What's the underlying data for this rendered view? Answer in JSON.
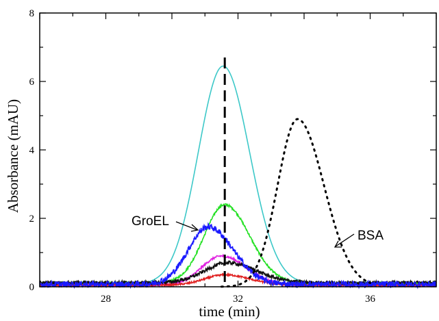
{
  "chart_data": {
    "type": "line",
    "xlabel": "time (min)",
    "ylabel": "Absorbance (mAU)",
    "xlim": [
      26,
      38
    ],
    "ylim": [
      0,
      8
    ],
    "xticks": [
      28,
      32,
      36
    ],
    "yticks": [
      0,
      2,
      4,
      6,
      8
    ],
    "grid": false,
    "series": [
      {
        "color": "#3cc8c8",
        "style": "solid",
        "noise": 0,
        "peak_x": 31.55,
        "peak_y": 6.45,
        "width_left": 0.75,
        "width_right": 0.8,
        "baseline": 0.08,
        "points": [
          [
            26,
            0.08
          ],
          [
            29.5,
            0.1
          ],
          [
            30.5,
            1.3
          ],
          [
            31.0,
            3.9
          ],
          [
            31.55,
            6.45
          ],
          [
            32.2,
            4.4
          ],
          [
            32.8,
            1.6
          ],
          [
            33.5,
            0.3
          ],
          [
            38,
            0.1
          ]
        ]
      },
      {
        "color": "#22e022",
        "style": "solid",
        "noise": 0.03,
        "peak_x": 31.6,
        "peak_y": 2.4,
        "width_left": 0.62,
        "width_right": 0.75,
        "baseline": 0.1,
        "points": [
          [
            26,
            0.1
          ],
          [
            30.0,
            0.15
          ],
          [
            31.0,
            1.5
          ],
          [
            31.6,
            2.4
          ],
          [
            32.3,
            1.5
          ],
          [
            33.0,
            0.45
          ],
          [
            38,
            0.15
          ]
        ]
      },
      {
        "color": "#e020e0",
        "style": "solid",
        "noise": 0.03,
        "peak_x": 31.5,
        "peak_y": 0.9,
        "width_left": 0.6,
        "width_right": 0.75,
        "baseline": 0.05,
        "points": [
          [
            26,
            0.05
          ],
          [
            30.3,
            0.1
          ],
          [
            31.5,
            0.9
          ],
          [
            32.6,
            0.35
          ],
          [
            38,
            0.05
          ]
        ]
      },
      {
        "color": "#e02020",
        "style": "solid",
        "noise": 0.025,
        "peak_x": 31.6,
        "peak_y": 0.35,
        "width_left": 0.6,
        "width_right": 0.75,
        "baseline": 0.05,
        "points": [
          [
            26,
            0.05
          ],
          [
            31.6,
            0.35
          ],
          [
            38,
            0.05
          ]
        ]
      },
      {
        "color": "#111111",
        "style": "solid",
        "noise": 0.05,
        "peak_x": 31.7,
        "peak_y": 0.7,
        "width_left": 0.7,
        "width_right": 0.85,
        "baseline": 0.12,
        "points": [
          [
            26,
            0.12
          ],
          [
            31.7,
            0.7
          ],
          [
            38,
            0.12
          ]
        ]
      },
      {
        "color": "#1a1aff",
        "style": "solid",
        "noise": 0.09,
        "peak_x": 31.1,
        "peak_y": 1.75,
        "width_left": 0.6,
        "width_right": 0.75,
        "baseline": 0.07,
        "points": [
          [
            26,
            0.07
          ],
          [
            30.0,
            0.3
          ],
          [
            30.6,
            1.2
          ],
          [
            31.1,
            1.75
          ],
          [
            31.8,
            1.0
          ],
          [
            32.5,
            0.4
          ],
          [
            38,
            0.07
          ]
        ]
      },
      {
        "color": "#000000",
        "style": "dotted",
        "noise": 0,
        "peak_x": 33.8,
        "peak_y": 4.9,
        "width_left": 0.6,
        "width_right": 0.8,
        "baseline": 0.0,
        "points": [
          [
            31.5,
            0.02
          ],
          [
            32.7,
            0.9
          ],
          [
            33.3,
            3.2
          ],
          [
            33.8,
            4.9
          ],
          [
            34.4,
            3.5
          ],
          [
            35.0,
            1.2
          ],
          [
            36.0,
            0.1
          ]
        ]
      }
    ],
    "reference_line": {
      "x": 31.6,
      "style": "dashed",
      "color": "#000000"
    },
    "annotations": [
      {
        "text": "GroEL",
        "series_color": "#1a1aff"
      },
      {
        "text": "BSA",
        "series_color": "#000000"
      }
    ]
  }
}
